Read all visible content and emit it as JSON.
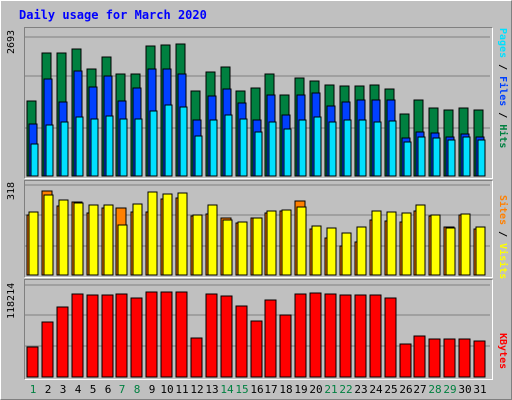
{
  "title": "Daily usage for March 2020",
  "colors": {
    "hits": "#008040",
    "files": "#0040ff",
    "pages": "#00e0ff",
    "visits": "#ffff00",
    "sites": "#ff8000",
    "kbytes": "#ff0000",
    "weekday_label": "#000000",
    "weekend_label": "#008040"
  },
  "panels": {
    "requests": {
      "ymax_label": "2693",
      "legend": {
        "pages": "Pages",
        "sep1": " / ",
        "files": "Files",
        "sep2": " / ",
        "hits": "Hits"
      }
    },
    "visits": {
      "ymax_label": "318",
      "legend": {
        "sites": "Sites",
        "sep1": " / ",
        "visits": "Visits"
      }
    },
    "kbytes": {
      "ymax_label": "118214",
      "legend": {
        "kbytes": "KBytes"
      }
    }
  },
  "chart_data": [
    {
      "type": "bar",
      "panel": "requests",
      "categories": [
        "1",
        "2",
        "3",
        "4",
        "5",
        "6",
        "7",
        "8",
        "9",
        "10",
        "11",
        "12",
        "13",
        "14",
        "15",
        "16",
        "17",
        "18",
        "19",
        "20",
        "21",
        "22",
        "23",
        "24",
        "25",
        "26",
        "27",
        "28",
        "29",
        "30",
        "31"
      ],
      "ylim": [
        0,
        2693
      ],
      "series": [
        {
          "name": "Hits",
          "color": "#008040",
          "values": [
            1450,
            2380,
            2390,
            2460,
            2080,
            2310,
            1970,
            1970,
            2510,
            2530,
            2550,
            1650,
            2010,
            2110,
            1650,
            1700,
            1970,
            1570,
            1890,
            1840,
            1760,
            1740,
            1750,
            1760,
            1680,
            1210,
            1470,
            1320,
            1270,
            1310,
            1280
          ]
        },
        {
          "name": "Files",
          "color": "#0040ff",
          "values": [
            1010,
            1880,
            1430,
            2030,
            1720,
            1940,
            1460,
            1700,
            2070,
            2070,
            1970,
            1080,
            1550,
            1680,
            1420,
            1090,
            1570,
            1180,
            1560,
            1600,
            1350,
            1430,
            1480,
            1480,
            1470,
            730,
            850,
            830,
            750,
            820,
            750
          ]
        },
        {
          "name": "Pages",
          "color": "#00e0ff",
          "values": [
            620,
            990,
            1040,
            1150,
            1110,
            1170,
            1100,
            1100,
            1260,
            1370,
            1330,
            770,
            1080,
            1190,
            1100,
            860,
            1040,
            910,
            1090,
            1140,
            1040,
            1080,
            1080,
            1040,
            1060,
            660,
            760,
            730,
            700,
            750,
            690
          ]
        }
      ]
    },
    {
      "type": "bar",
      "panel": "visits",
      "categories": [
        "1",
        "2",
        "3",
        "4",
        "5",
        "6",
        "7",
        "8",
        "9",
        "10",
        "11",
        "12",
        "13",
        "14",
        "15",
        "16",
        "17",
        "18",
        "19",
        "20",
        "21",
        "22",
        "23",
        "24",
        "25",
        "26",
        "27",
        "28",
        "29",
        "30",
        "31"
      ],
      "ylim": [
        0,
        318
      ],
      "series": [
        {
          "name": "Sites",
          "color": "#ff8000",
          "values": [
            211,
            297,
            243,
            257,
            220,
            238,
            237,
            224,
            223,
            270,
            271,
            207,
            217,
            203,
            183,
            202,
            220,
            225,
            262,
            162,
            132,
            104,
            117,
            195,
            190,
            186,
            225,
            208,
            169,
            213,
            162
          ]
        },
        {
          "name": "Visits",
          "color": "#ffff00",
          "values": [
            222,
            284,
            264,
            253,
            246,
            248,
            177,
            251,
            294,
            287,
            291,
            213,
            248,
            193,
            186,
            201,
            225,
            228,
            242,
            172,
            167,
            147,
            170,
            225,
            221,
            218,
            248,
            213,
            167,
            214,
            169
          ]
        }
      ]
    },
    {
      "type": "bar",
      "panel": "kbytes",
      "categories": [
        "1",
        "2",
        "3",
        "4",
        "5",
        "6",
        "7",
        "8",
        "9",
        "10",
        "11",
        "12",
        "13",
        "14",
        "15",
        "16",
        "17",
        "18",
        "19",
        "20",
        "21",
        "22",
        "23",
        "24",
        "25",
        "26",
        "27",
        "28",
        "29",
        "30",
        "31"
      ],
      "ylim": [
        0,
        118214
      ],
      "series": [
        {
          "name": "KBytes",
          "color": "#ff0000",
          "values": [
            38000,
            71000,
            90000,
            107000,
            105000,
            106000,
            107000,
            102000,
            109000,
            109000,
            109000,
            50000,
            107000,
            104000,
            91000,
            72000,
            99000,
            80000,
            107000,
            108000,
            107000,
            106000,
            106000,
            105000,
            101000,
            42000,
            53000,
            49000,
            49000,
            49000,
            46000
          ]
        }
      ]
    }
  ],
  "x_labels": [
    {
      "text": "1",
      "weekend": true
    },
    {
      "text": "2",
      "weekend": false
    },
    {
      "text": "3",
      "weekend": false
    },
    {
      "text": "4",
      "weekend": false
    },
    {
      "text": "5",
      "weekend": false
    },
    {
      "text": "6",
      "weekend": false
    },
    {
      "text": "7",
      "weekend": true
    },
    {
      "text": "8",
      "weekend": true
    },
    {
      "text": "9",
      "weekend": false
    },
    {
      "text": "10",
      "weekend": false
    },
    {
      "text": "11",
      "weekend": false
    },
    {
      "text": "12",
      "weekend": false
    },
    {
      "text": "13",
      "weekend": false
    },
    {
      "text": "14",
      "weekend": true
    },
    {
      "text": "15",
      "weekend": true
    },
    {
      "text": "16",
      "weekend": false
    },
    {
      "text": "17",
      "weekend": false
    },
    {
      "text": "18",
      "weekend": false
    },
    {
      "text": "19",
      "weekend": false
    },
    {
      "text": "20",
      "weekend": false
    },
    {
      "text": "21",
      "weekend": true
    },
    {
      "text": "22",
      "weekend": true
    },
    {
      "text": "23",
      "weekend": false
    },
    {
      "text": "24",
      "weekend": false
    },
    {
      "text": "25",
      "weekend": false
    },
    {
      "text": "26",
      "weekend": false
    },
    {
      "text": "27",
      "weekend": false
    },
    {
      "text": "28",
      "weekend": true
    },
    {
      "text": "29",
      "weekend": true
    },
    {
      "text": "30",
      "weekend": false
    },
    {
      "text": "31",
      "weekend": false
    }
  ]
}
